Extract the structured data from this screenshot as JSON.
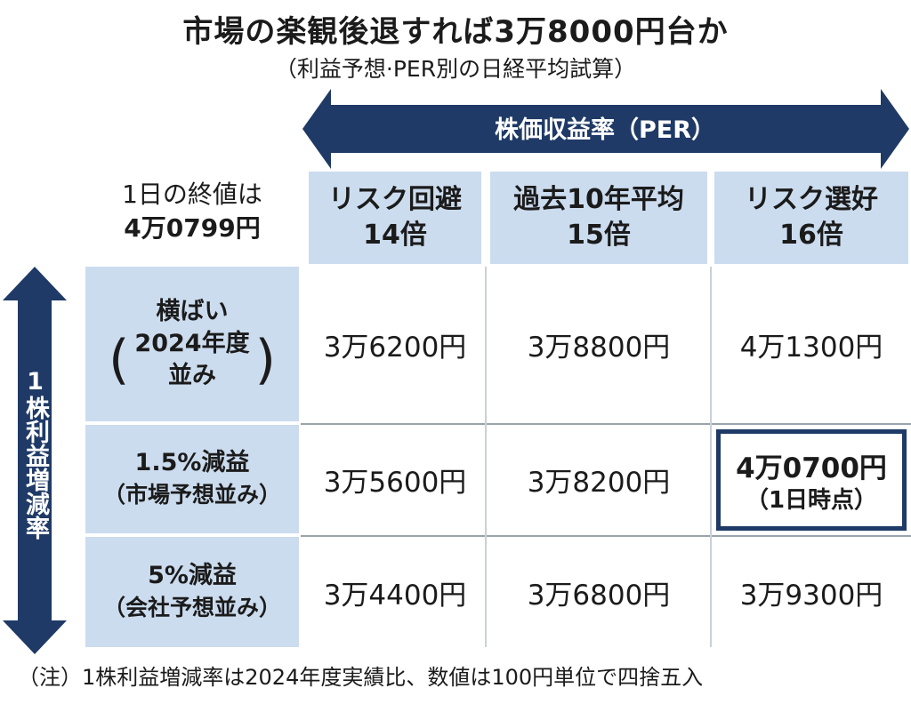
{
  "title": "市場の楽観後退すれば3万8000円台か",
  "subtitle": "（利益予想·PER別の日経平均試算）",
  "chart_data": {
    "type": "table",
    "column_axis_label": "株価収益率（PER）",
    "row_axis_label": "1株利益増減率",
    "close_info": {
      "line1": "1日の終値は",
      "value": "4万0799円"
    },
    "columns": [
      {
        "name": "リスク回避",
        "per": "14倍"
      },
      {
        "name": "過去10年平均",
        "per": "15倍"
      },
      {
        "name": "リスク選好",
        "per": "16倍"
      }
    ],
    "rows": [
      {
        "line1": "横ばい",
        "line2": "2024年度",
        "line3": "並み",
        "values": [
          "3万6200円",
          "3万8800円",
          "4万1300円"
        ]
      },
      {
        "line1": "1.5%減益",
        "line2": "（市場予想並み）",
        "values": [
          "3万5600円",
          "3万8200円",
          "4万0700円"
        ]
      },
      {
        "line1": "5%減益",
        "line2": "（会社予想並み）",
        "values": [
          "3万4400円",
          "3万6800円",
          "3万9300円"
        ]
      }
    ],
    "highlight": {
      "row": 1,
      "col": 2,
      "note": "（1日時点）"
    }
  },
  "note": "（注）1株利益増減率は2024年度実績比、数値は100円単位で四捨五入",
  "colors": {
    "arrow": "#1f3a66",
    "header_bg": "#ccdcef",
    "highlight_border": "#1f3a66"
  }
}
